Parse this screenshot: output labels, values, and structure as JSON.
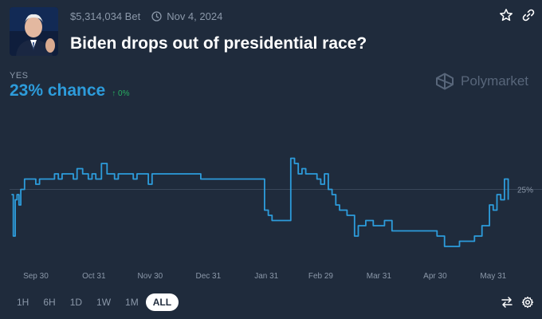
{
  "market": {
    "volume": "$5,314,034 Bet",
    "end_date": "Nov 4, 2024",
    "title": "Biden drops out of presidential race?"
  },
  "outcome": {
    "label": "YES",
    "chance": "23% chance",
    "change": "↑ 0%"
  },
  "brand": {
    "name": "Polymarket"
  },
  "icons": {
    "avatar": "candidate-photo",
    "calendar": "clock-icon",
    "favorite": "star-icon",
    "share": "link-icon",
    "swap": "swap-icon",
    "settings": "gear-icon"
  },
  "time_ranges": [
    {
      "label": "1H",
      "active": false
    },
    {
      "label": "6H",
      "active": false
    },
    {
      "label": "1D",
      "active": false
    },
    {
      "label": "1W",
      "active": false
    },
    {
      "label": "1M",
      "active": false
    },
    {
      "label": "ALL",
      "active": true
    }
  ],
  "colors": {
    "background": "#1f2b3c",
    "line": "#2d9cdb",
    "change_up": "#27ae60",
    "muted_text": "#8b98a9"
  },
  "chart_data": {
    "type": "line",
    "title": "",
    "xlabel": "",
    "ylabel": "",
    "x_tick_labels": [
      "Sep 30",
      "Oct 31",
      "Nov 30",
      "Dec 31",
      "Jan 31",
      "Feb 29",
      "Mar 31",
      "Apr 30",
      "May 31"
    ],
    "y_tick_labels": [
      "25%"
    ],
    "y_ticks": [
      25
    ],
    "ylim": [
      10,
      40
    ],
    "xlim": [
      -14,
      253
    ],
    "grid": "single reference line at 25%",
    "series": [
      {
        "name": "YES",
        "x": [
          -13,
          -12,
          -11,
          -10,
          -9,
          -8,
          -6,
          -4,
          -2,
          0,
          2,
          5,
          8,
          10,
          12,
          14,
          16,
          18,
          20,
          22,
          25,
          28,
          30,
          32,
          35,
          38,
          40,
          42,
          44,
          46,
          48,
          50,
          52,
          54,
          56,
          58,
          60,
          62,
          64,
          66,
          68,
          70,
          72,
          74,
          76,
          80,
          84,
          88,
          92,
          96,
          100,
          104,
          108,
          112,
          116,
          120,
          122,
          124,
          126,
          128,
          130,
          132,
          134,
          136,
          138,
          140,
          142,
          144,
          146,
          148,
          150,
          152,
          154,
          156,
          158,
          160,
          162,
          164,
          166,
          168,
          170,
          172,
          174,
          176,
          178,
          180,
          182,
          184,
          186,
          190,
          194,
          198,
          202,
          206,
          210,
          214,
          218,
          222,
          226,
          230,
          234,
          238,
          240,
          242,
          244,
          246,
          248,
          250,
          252
        ],
        "values": [
          24,
          16,
          23,
          24,
          22,
          25,
          27,
          27,
          27,
          26,
          27,
          27,
          27,
          28,
          27,
          28,
          28,
          28,
          27,
          29,
          28,
          27,
          28,
          27,
          30,
          28,
          28,
          27,
          28,
          28,
          28,
          28,
          27,
          28,
          28,
          28,
          26,
          28,
          28,
          28,
          28,
          28,
          28,
          28,
          28,
          28,
          28,
          27,
          27,
          27,
          27,
          27,
          27,
          27,
          27,
          27,
          21,
          20,
          19,
          19,
          19,
          19,
          19,
          31,
          30,
          28,
          29,
          28,
          28,
          28,
          27,
          26,
          28,
          25,
          24,
          22,
          21,
          21,
          20,
          20,
          16,
          18,
          18,
          19,
          19,
          18,
          18,
          18,
          19,
          17,
          17,
          17,
          17,
          17,
          17,
          16,
          14,
          14,
          15,
          15,
          16,
          18,
          18,
          22,
          21,
          24,
          23,
          27,
          23
        ]
      }
    ]
  }
}
